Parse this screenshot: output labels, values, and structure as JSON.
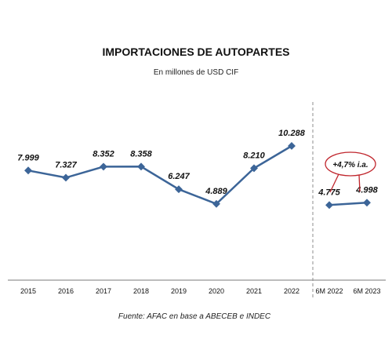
{
  "chart_data": {
    "type": "line",
    "title": "IMPORTACIONES DE AUTOPARTES",
    "subtitle": "En millones de USD CIF",
    "source": "Fuente: AFAC en base a ABECEB e INDEC",
    "annual": {
      "categories": [
        "2015",
        "2016",
        "2017",
        "2018",
        "2019",
        "2020",
        "2021",
        "2022"
      ],
      "values": [
        7999,
        7327,
        8352,
        8358,
        6247,
        4889,
        8210,
        10288
      ],
      "labels": [
        "7.999",
        "7.327",
        "8.352",
        "8.358",
        "6.247",
        "4.889",
        "8.210",
        "10.288"
      ]
    },
    "semester": {
      "categories": [
        "6M 2022",
        "6M 2023"
      ],
      "values": [
        4775,
        4998
      ],
      "labels": [
        "4.775",
        "4.998"
      ]
    },
    "annotation": "+4,7% i.a.",
    "colors": {
      "line": "#3c6598",
      "marker": "#3c6598",
      "divider": "#8c8c8c",
      "annotation": "#c0262d"
    },
    "grid": false,
    "legend": "none"
  }
}
